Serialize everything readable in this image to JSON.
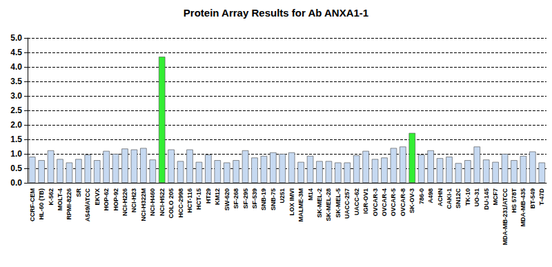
{
  "chart_data": {
    "type": "bar",
    "title": "Protein Array Results for Ab ANXA1-1",
    "categories": [
      "CCRF-CEM",
      "HL-60 (TB)",
      "K-562",
      "MOLT-4",
      "RPMI-8226",
      "SR",
      "A549/ATCC",
      "EKVX",
      "HOP-62",
      "HOP-92",
      "NCI-H226",
      "NCI-H23",
      "NCI-H322M",
      "NCI-H460",
      "NCI-H522",
      "COLO 205",
      "HCC-2998",
      "HCT-116",
      "HCT-15",
      "HT29",
      "KM12",
      "SW-620",
      "SF-268",
      "SF-295",
      "SF-539",
      "SNB-19",
      "SNB-75",
      "U251",
      "LOX IMVI",
      "MALME-3M",
      "M14",
      "SK-MEL-2",
      "SK-MEL-28",
      "SK-MEL-5",
      "UACC-257",
      "UACC-62",
      "IGR-OV1",
      "OVCAR-3",
      "OVCAR-4",
      "OVCAR-5",
      "OVCAR-8",
      "SK-OV-3",
      "786-0",
      "A498",
      "ACHN",
      "CAKI-1",
      "SN12C",
      "TK-10",
      "UO-31",
      "DU-145",
      "MCF7",
      "MDA-MB-231/ATCC",
      "HS 578T",
      "MDA-MB-435",
      "BT-549",
      "T-47D"
    ],
    "values": [
      0.9,
      0.78,
      1.12,
      0.82,
      0.7,
      0.82,
      0.97,
      0.78,
      1.1,
      1.0,
      1.18,
      1.15,
      1.2,
      0.8,
      4.35,
      1.15,
      0.75,
      1.15,
      0.72,
      0.97,
      0.78,
      0.7,
      0.78,
      1.12,
      0.87,
      0.93,
      1.05,
      1.0,
      1.05,
      0.72,
      0.93,
      0.75,
      0.75,
      0.7,
      0.7,
      0.95,
      1.1,
      0.82,
      0.87,
      1.2,
      1.25,
      1.72,
      0.97,
      1.12,
      0.85,
      0.9,
      0.68,
      0.78,
      1.25,
      0.8,
      0.72,
      1.0,
      0.78,
      0.93,
      1.08,
      0.7
    ],
    "colors": [
      "#c6d9f1",
      "#c6d9f1",
      "#c6d9f1",
      "#c6d9f1",
      "#c6d9f1",
      "#c6d9f1",
      "#c6d9f1",
      "#c6d9f1",
      "#c6d9f1",
      "#c6d9f1",
      "#c6d9f1",
      "#c6d9f1",
      "#c6d9f1",
      "#c6d9f1",
      "#33ee33",
      "#c6d9f1",
      "#c6d9f1",
      "#c6d9f1",
      "#c6d9f1",
      "#c6d9f1",
      "#c6d9f1",
      "#c6d9f1",
      "#c6d9f1",
      "#c6d9f1",
      "#c6d9f1",
      "#c6d9f1",
      "#c6d9f1",
      "#c6d9f1",
      "#c6d9f1",
      "#c6d9f1",
      "#c6d9f1",
      "#c6d9f1",
      "#c6d9f1",
      "#c6d9f1",
      "#c6d9f1",
      "#c6d9f1",
      "#c6d9f1",
      "#c6d9f1",
      "#c6d9f1",
      "#c6d9f1",
      "#c6d9f1",
      "#33ee33",
      "#c6d9f1",
      "#c6d9f1",
      "#c6d9f1",
      "#c6d9f1",
      "#c6d9f1",
      "#c6d9f1",
      "#c6d9f1",
      "#c6d9f1",
      "#c6d9f1",
      "#c6d9f1",
      "#c6d9f1",
      "#c6d9f1",
      "#c6d9f1",
      "#c6d9f1"
    ],
    "ylim": [
      0,
      5
    ],
    "yticks": [
      {
        "value": 0,
        "label": "0.0"
      },
      0.5,
      {
        "value": 1,
        "label": "1.0"
      },
      1.5,
      {
        "value": 2,
        "label": "2.0"
      },
      2.5,
      {
        "value": 3,
        "label": "3.0"
      },
      3.5,
      {
        "value": 4,
        "label": "4.0"
      },
      4.5,
      {
        "value": 5,
        "label": "5.0"
      }
    ],
    "grid": true
  }
}
